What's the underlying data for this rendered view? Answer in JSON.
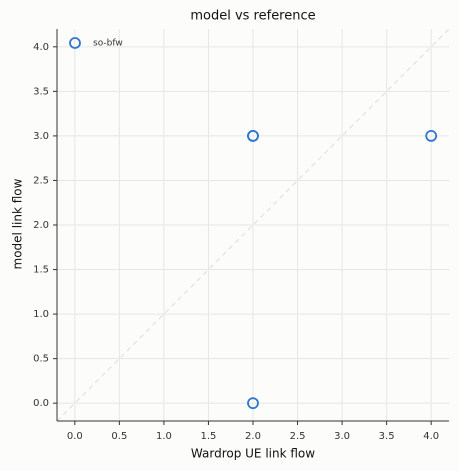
{
  "chart_data": {
    "type": "scatter",
    "title": "model vs reference",
    "x_label": "Wardrop UE link flow",
    "y_label": "model link flow",
    "series": [
      {
        "name": "so-bfw",
        "color": "#2f77d0",
        "x": [
          2,
          2,
          4,
          2
        ],
        "values": [
          3,
          3,
          3,
          0
        ]
      }
    ],
    "xlim": [
      -0.2,
      4.2
    ],
    "ylim": [
      -0.2,
      4.2
    ],
    "xticks": [
      {
        "value": 0,
        "label": "0.0"
      },
      {
        "value": 0.5,
        "label": "0.5"
      },
      {
        "value": 1,
        "label": "1.0"
      },
      {
        "value": 1.5,
        "label": "1.5"
      },
      {
        "value": 2,
        "label": "2.0"
      },
      {
        "value": 2.5,
        "label": "2.5"
      },
      {
        "value": 3,
        "label": "3.0"
      },
      {
        "value": 3.5,
        "label": "3.5"
      },
      {
        "value": 4,
        "label": "4.0"
      }
    ],
    "yticks": [
      {
        "value": 0,
        "label": "0.0"
      },
      {
        "value": 0.5,
        "label": "0.5"
      },
      {
        "value": 1,
        "label": "1.0"
      },
      {
        "value": 1.5,
        "label": "1.5"
      },
      {
        "value": 2,
        "label": "2.0"
      },
      {
        "value": 2.5,
        "label": "2.5"
      },
      {
        "value": 3,
        "label": "3.0"
      },
      {
        "value": 3.5,
        "label": "3.5"
      },
      {
        "value": 4,
        "label": "4.0"
      }
    ],
    "grid": true,
    "reference_line": true,
    "legend": "upper left"
  }
}
